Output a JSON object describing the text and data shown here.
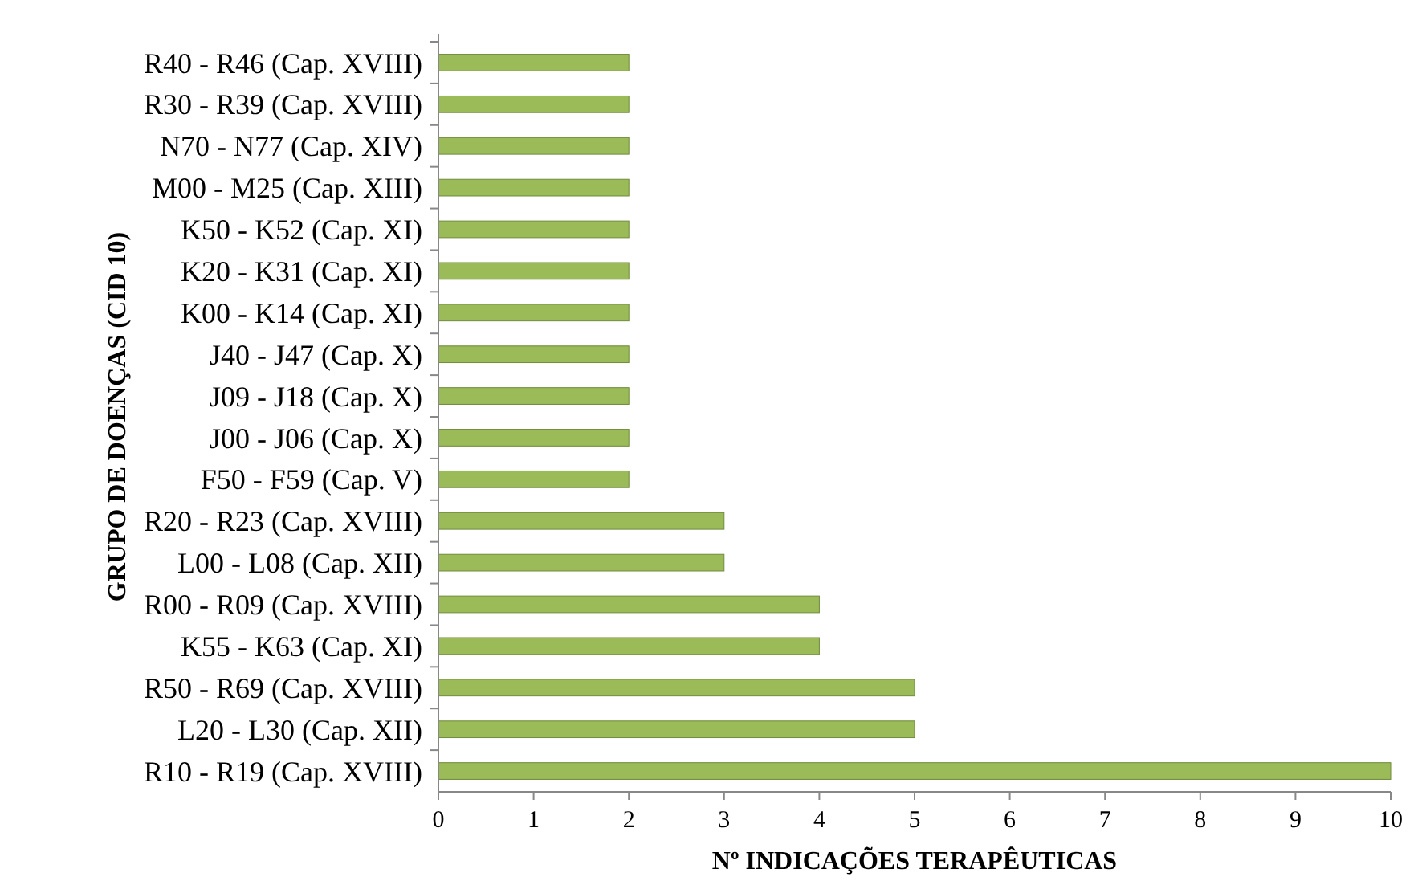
{
  "chart_data": {
    "type": "bar",
    "orientation": "horizontal",
    "xlabel": "Nº INDICAÇÕES TERAPÊUTICAS",
    "ylabel": "GRUPO DE DOENÇAS (CID 10)",
    "categories": [
      "R40 - R46 (Cap. XVIII)",
      "R30 - R39 (Cap. XVIII)",
      "N70 - N77 (Cap. XIV)",
      "M00 - M25 (Cap. XIII)",
      "K50 - K52 (Cap. XI)",
      "K20 - K31 (Cap. XI)",
      "K00 - K14 (Cap. XI)",
      "J40 - J47 (Cap. X)",
      "J09 - J18 (Cap. X)",
      "J00 - J06 (Cap. X)",
      "F50 - F59 (Cap. V)",
      "R20 - R23 (Cap. XVIII)",
      "L00 - L08 (Cap. XII)",
      "R00 - R09 (Cap. XVIII)",
      "K55 - K63  (Cap. XI)",
      "R50 - R69 (Cap. XVIII)",
      "L20 - L30 (Cap. XII)",
      "R10 - R19 (Cap. XVIII)"
    ],
    "values": [
      2,
      2,
      2,
      2,
      2,
      2,
      2,
      2,
      2,
      2,
      2,
      3,
      3,
      4,
      4,
      5,
      5,
      10
    ],
    "color": "#9bbb59",
    "xlim": [
      0,
      10
    ],
    "xticks": [
      0,
      1,
      2,
      3,
      4,
      5,
      6,
      7,
      8,
      9,
      10
    ],
    "grid": false
  }
}
